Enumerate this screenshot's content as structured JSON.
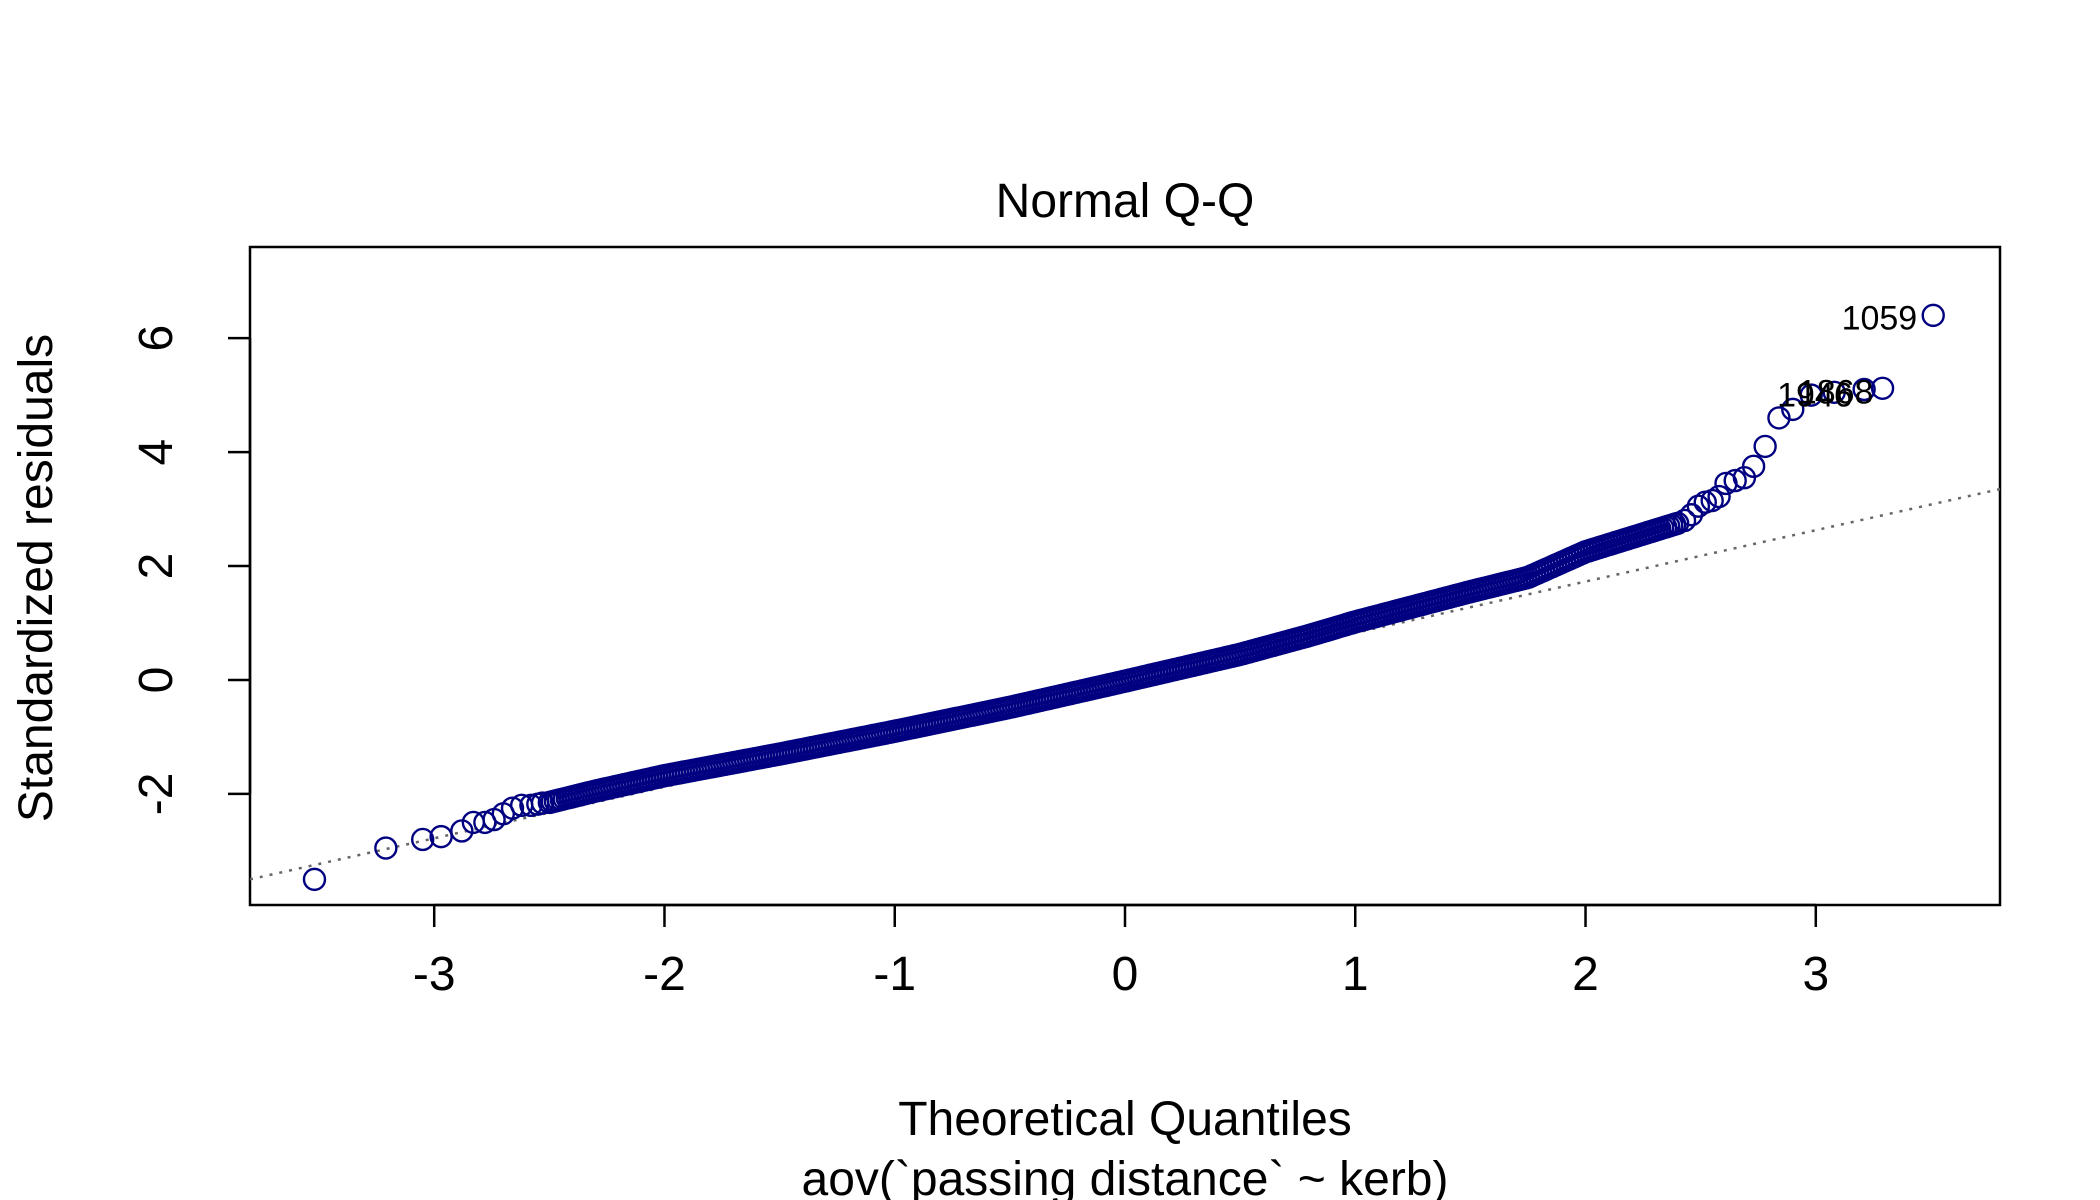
{
  "chart_data": {
    "type": "scatter",
    "title": "Normal Q-Q",
    "xlabel": "Theoretical Quantiles",
    "xlabel_sub": "aov(`passing distance` ~ kerb)",
    "ylabel": "Standardized residuals",
    "xlim": [
      -3.8,
      3.8
    ],
    "ylim": [
      -3.95,
      7.6
    ],
    "x_ticks": [
      -3,
      -2,
      -1,
      0,
      1,
      2,
      3
    ],
    "y_ticks": [
      -2,
      0,
      2,
      4,
      6
    ],
    "grid": false,
    "legend": "none",
    "point_color": "#000080",
    "reference_line": {
      "style": "dotted",
      "color": "#666666",
      "points": [
        [
          -3.8,
          -3.5
        ],
        [
          3.8,
          3.35
        ]
      ]
    },
    "bulk_curve": [
      [
        -2.5,
        -2.15
      ],
      [
        -2.3,
        -1.95
      ],
      [
        -2.0,
        -1.68
      ],
      [
        -1.5,
        -1.3
      ],
      [
        -1.0,
        -0.9
      ],
      [
        -0.5,
        -0.48
      ],
      [
        0.0,
        -0.02
      ],
      [
        0.5,
        0.45
      ],
      [
        0.8,
        0.78
      ],
      [
        1.0,
        1.02
      ],
      [
        1.5,
        1.55
      ],
      [
        1.75,
        1.8
      ],
      [
        2.0,
        2.25
      ],
      [
        2.2,
        2.5
      ],
      [
        2.4,
        2.75
      ]
    ],
    "tail_points": [
      [
        -3.52,
        -3.5
      ],
      [
        -3.21,
        -2.95
      ],
      [
        -3.05,
        -2.8
      ],
      [
        -2.97,
        -2.75
      ],
      [
        -2.88,
        -2.65
      ],
      [
        -2.83,
        -2.5
      ],
      [
        -2.78,
        -2.5
      ],
      [
        -2.74,
        -2.45
      ],
      [
        -2.7,
        -2.35
      ],
      [
        -2.66,
        -2.25
      ],
      [
        -2.62,
        -2.2
      ],
      [
        -2.58,
        -2.2
      ],
      [
        -2.55,
        -2.18
      ],
      [
        -2.53,
        -2.16
      ],
      [
        2.43,
        2.8
      ],
      [
        2.46,
        2.9
      ],
      [
        2.49,
        3.05
      ],
      [
        2.52,
        3.12
      ],
      [
        2.55,
        3.15
      ],
      [
        2.58,
        3.22
      ],
      [
        2.61,
        3.45
      ],
      [
        2.65,
        3.5
      ],
      [
        2.69,
        3.55
      ],
      [
        2.73,
        3.75
      ],
      [
        2.78,
        4.1
      ],
      [
        2.84,
        4.6
      ],
      [
        2.9,
        4.75
      ],
      [
        2.98,
        5.0
      ],
      [
        3.08,
        5.05
      ],
      [
        3.21,
        5.1
      ],
      [
        3.29,
        5.12
      ],
      [
        3.51,
        6.4
      ]
    ],
    "point_labels": [
      {
        "text": "1059",
        "x": 3.51,
        "y": 6.4
      },
      {
        "text": "1868",
        "x": 3.32,
        "y": 5.1
      },
      {
        "text": "1946",
        "x": 3.23,
        "y": 5.05
      }
    ]
  }
}
